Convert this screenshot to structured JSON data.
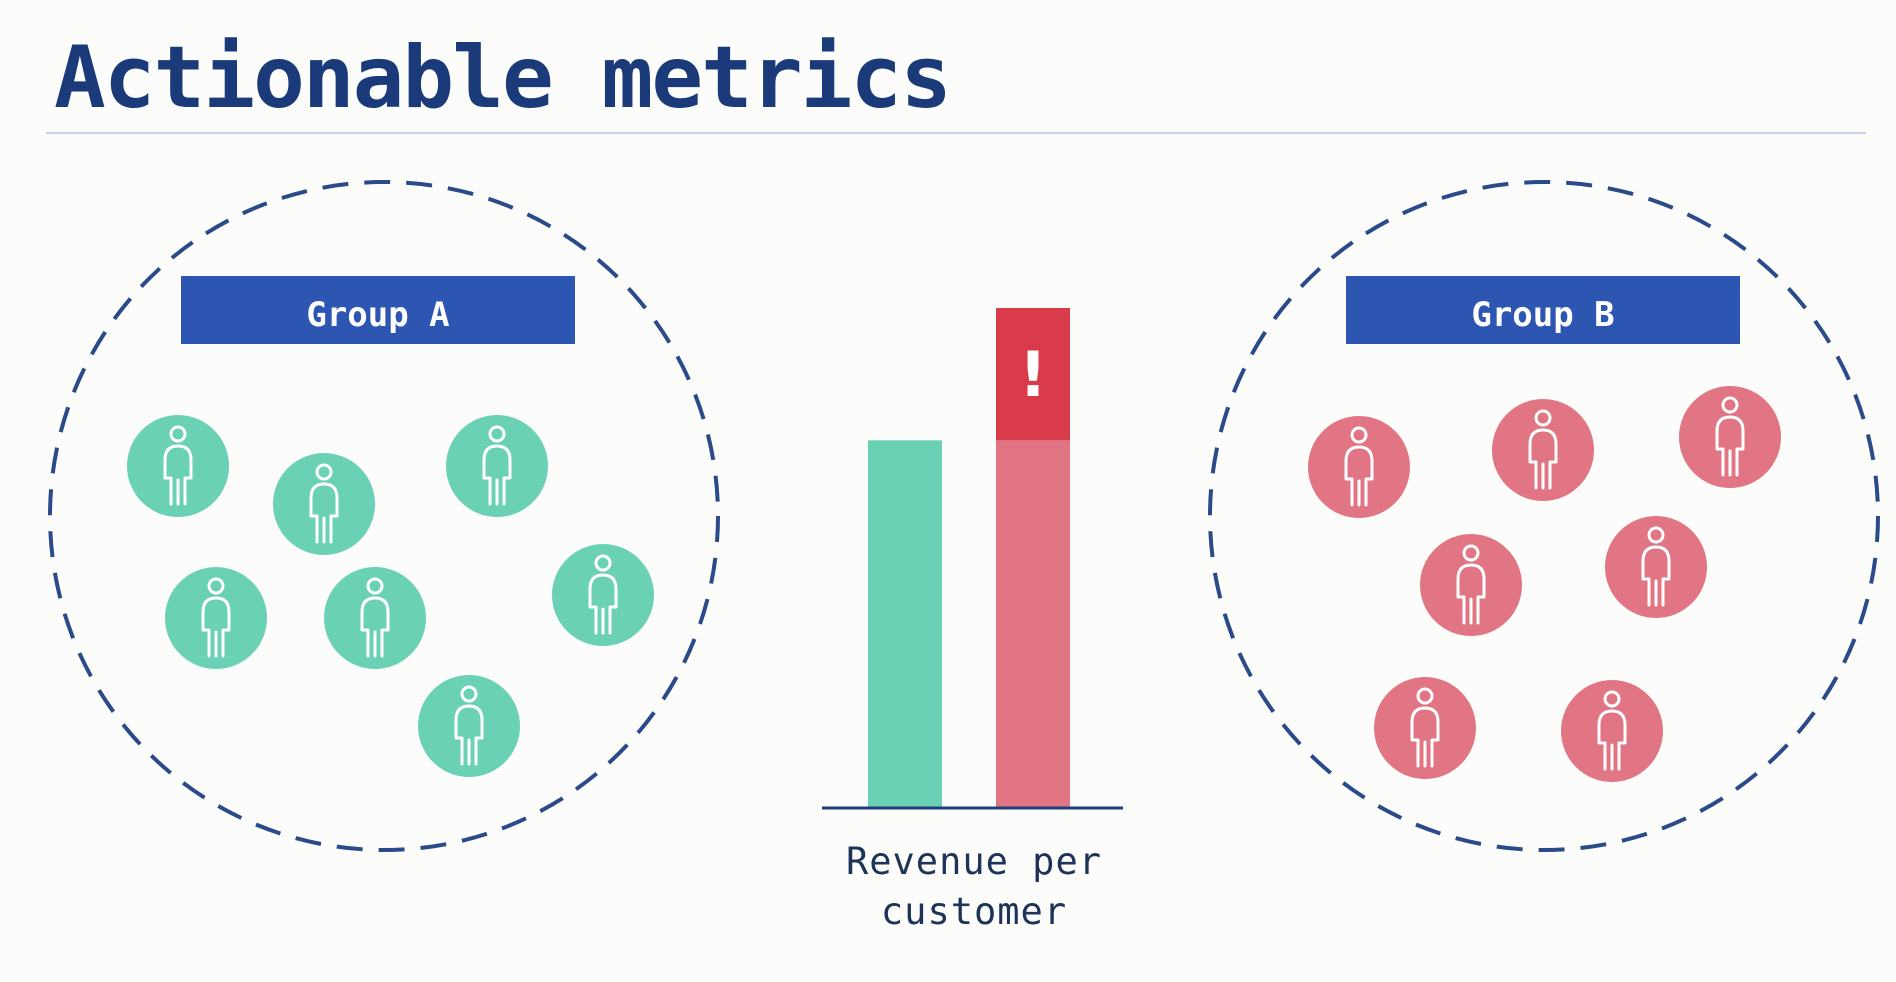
{
  "title": "Actionable metrics",
  "groups": [
    {
      "label": "Group A",
      "member_count": 7,
      "member_color": "#6bd1b5",
      "label_bg": "#2d56b3"
    },
    {
      "label": "Group B",
      "member_count": 7,
      "member_color": "#e17584",
      "label_bg": "#2d56b3"
    }
  ],
  "center_chart": {
    "label_line1": "Revenue per",
    "label_line2": "customer",
    "alert_text": "!",
    "alert_color": "#d93b4a",
    "axis_color": "#1f3d78"
  },
  "chart_data": {
    "type": "bar",
    "categories": [
      "Group A",
      "Group B"
    ],
    "values": [
      1.0,
      1.36
    ],
    "highlight": {
      "category": "Group B",
      "excess_over_baseline": 0.36
    },
    "colors": [
      "#6bd1b5",
      "#e17584"
    ],
    "xlabel": "Revenue per customer",
    "ylabel": "",
    "ylim": [
      0,
      1.36
    ]
  },
  "colors": {
    "title": "#1a3a7a",
    "circle_dash": "#2a4a8a",
    "icon_stroke": "#ffffff"
  }
}
